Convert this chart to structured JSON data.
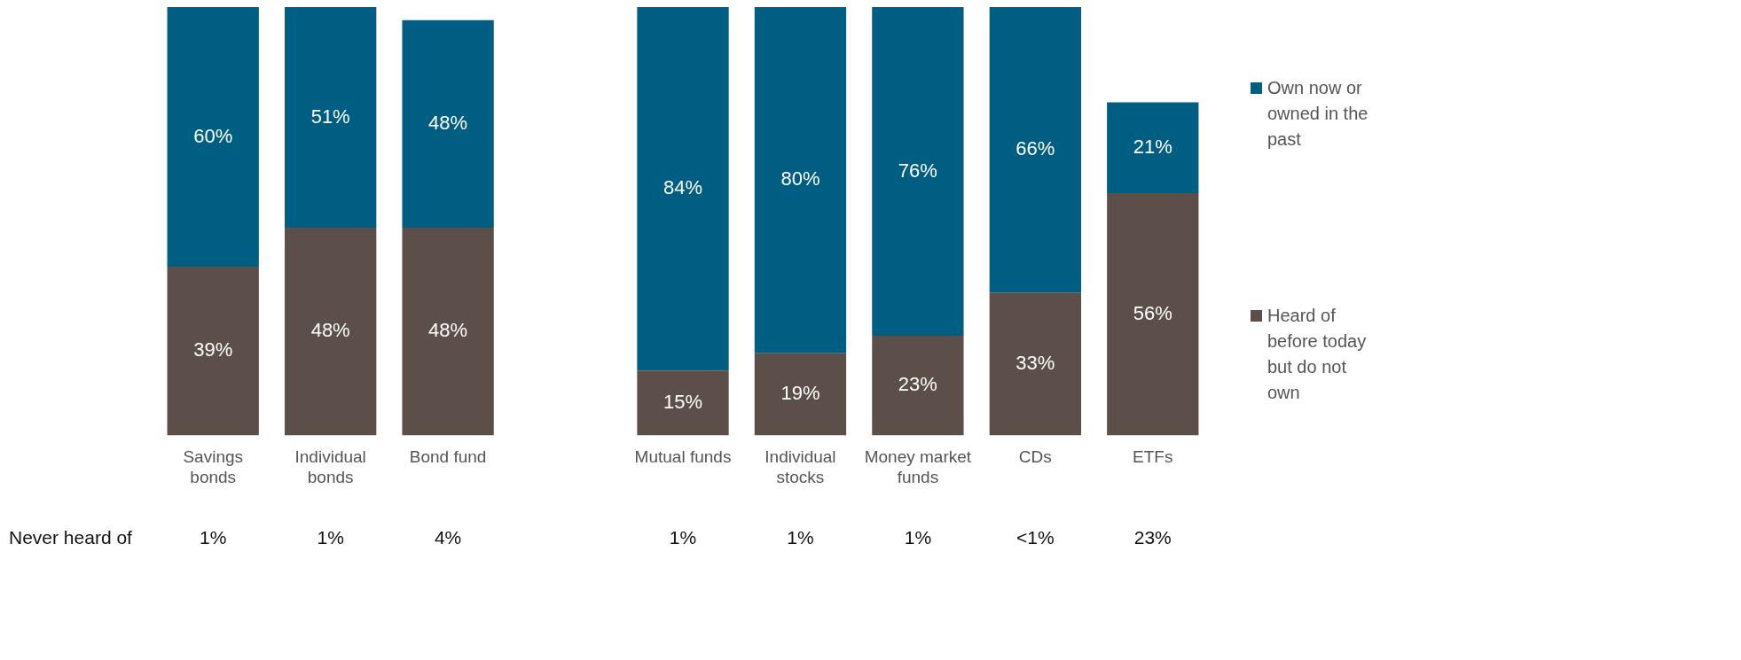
{
  "chart_data": {
    "type": "bar",
    "stacked": true,
    "legend": "right",
    "grid": false,
    "categories": [
      "Savings bonds",
      "Individual bonds",
      "Bond fund",
      null,
      "Mutual funds",
      "Individual stocks",
      "Money market funds",
      "CDs",
      "ETFs"
    ],
    "series": [
      {
        "name": "Heard of before today but do not own",
        "color": "#5c4f4a",
        "values": [
          39,
          48,
          48,
          null,
          15,
          19,
          23,
          33,
          56
        ],
        "value_labels": [
          "39%",
          "48%",
          "48%",
          null,
          "15%",
          "19%",
          "23%",
          "33%",
          "56%"
        ]
      },
      {
        "name": "Own now or owned in the past",
        "color": "#005e82",
        "values": [
          60,
          51,
          48,
          null,
          84,
          80,
          76,
          66,
          21
        ],
        "value_labels": [
          "60%",
          "51%",
          "48%",
          null,
          "84%",
          "80%",
          "76%",
          "66%",
          "21%"
        ]
      }
    ],
    "annotations": [
      "Never heard of",
      "1%",
      "1%",
      "4%",
      null,
      "1%",
      "1%",
      "1%",
      "<1%",
      "23%"
    ]
  }
}
